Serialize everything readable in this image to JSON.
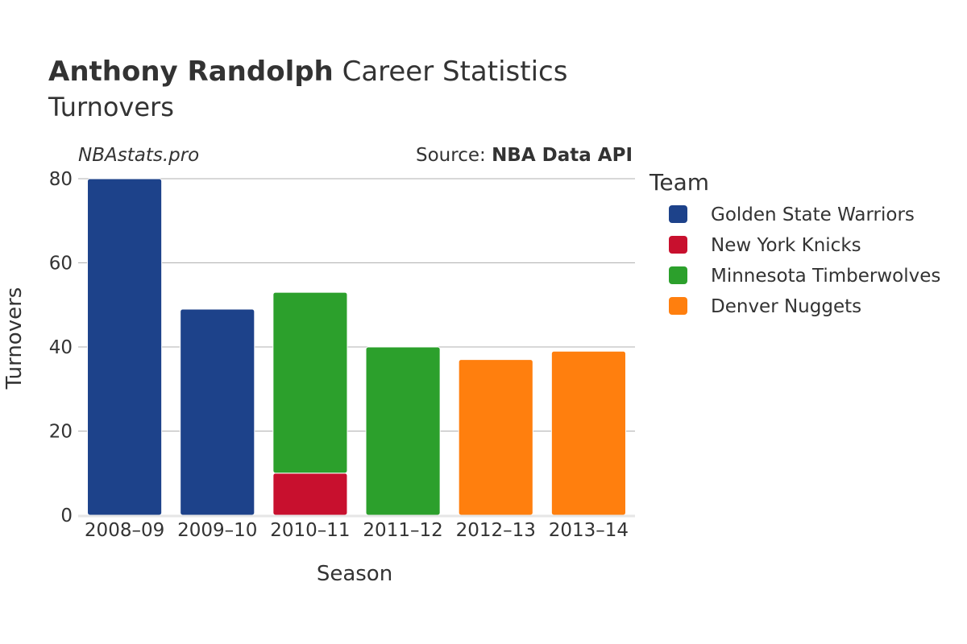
{
  "header": {
    "title_bold": "Anthony Randolph",
    "title_rest": " Career Statistics",
    "subtitle": "Turnovers",
    "watermark": "NBAstats.pro",
    "source_prefix": "Source: ",
    "source_name": "NBA Data API"
  },
  "legend": {
    "title": "Team",
    "placement": "right",
    "items": [
      {
        "name": "Golden State Warriors",
        "color": "#1d428a"
      },
      {
        "name": "New York Knicks",
        "color": "#c8102e"
      },
      {
        "name": "Minnesota Timberwolves",
        "color": "#2ca02c"
      },
      {
        "name": "Denver Nuggets",
        "color": "#ff7f0e"
      }
    ]
  },
  "chart_data": {
    "type": "bar",
    "stacked": true,
    "title": "Anthony Randolph Career Statistics",
    "subtitle": "Turnovers",
    "xlabel": "Season",
    "ylabel": "Turnovers",
    "categories": [
      "2008–09",
      "2009–10",
      "2010–11",
      "2011–12",
      "2012–13",
      "2013–14"
    ],
    "ylim": [
      0,
      80
    ],
    "yticks": [
      0,
      20,
      40,
      60,
      80
    ],
    "grid": true,
    "series": [
      {
        "name": "Golden State Warriors",
        "color": "#1d428a",
        "values": [
          80,
          49,
          0,
          0,
          0,
          0
        ]
      },
      {
        "name": "New York Knicks",
        "color": "#c8102e",
        "values": [
          0,
          0,
          10,
          0,
          0,
          0
        ]
      },
      {
        "name": "Minnesota Timberwolves",
        "color": "#2ca02c",
        "values": [
          0,
          0,
          43,
          40,
          0,
          0
        ]
      },
      {
        "name": "Denver Nuggets",
        "color": "#ff7f0e",
        "values": [
          0,
          0,
          0,
          0,
          37,
          39
        ]
      }
    ]
  }
}
